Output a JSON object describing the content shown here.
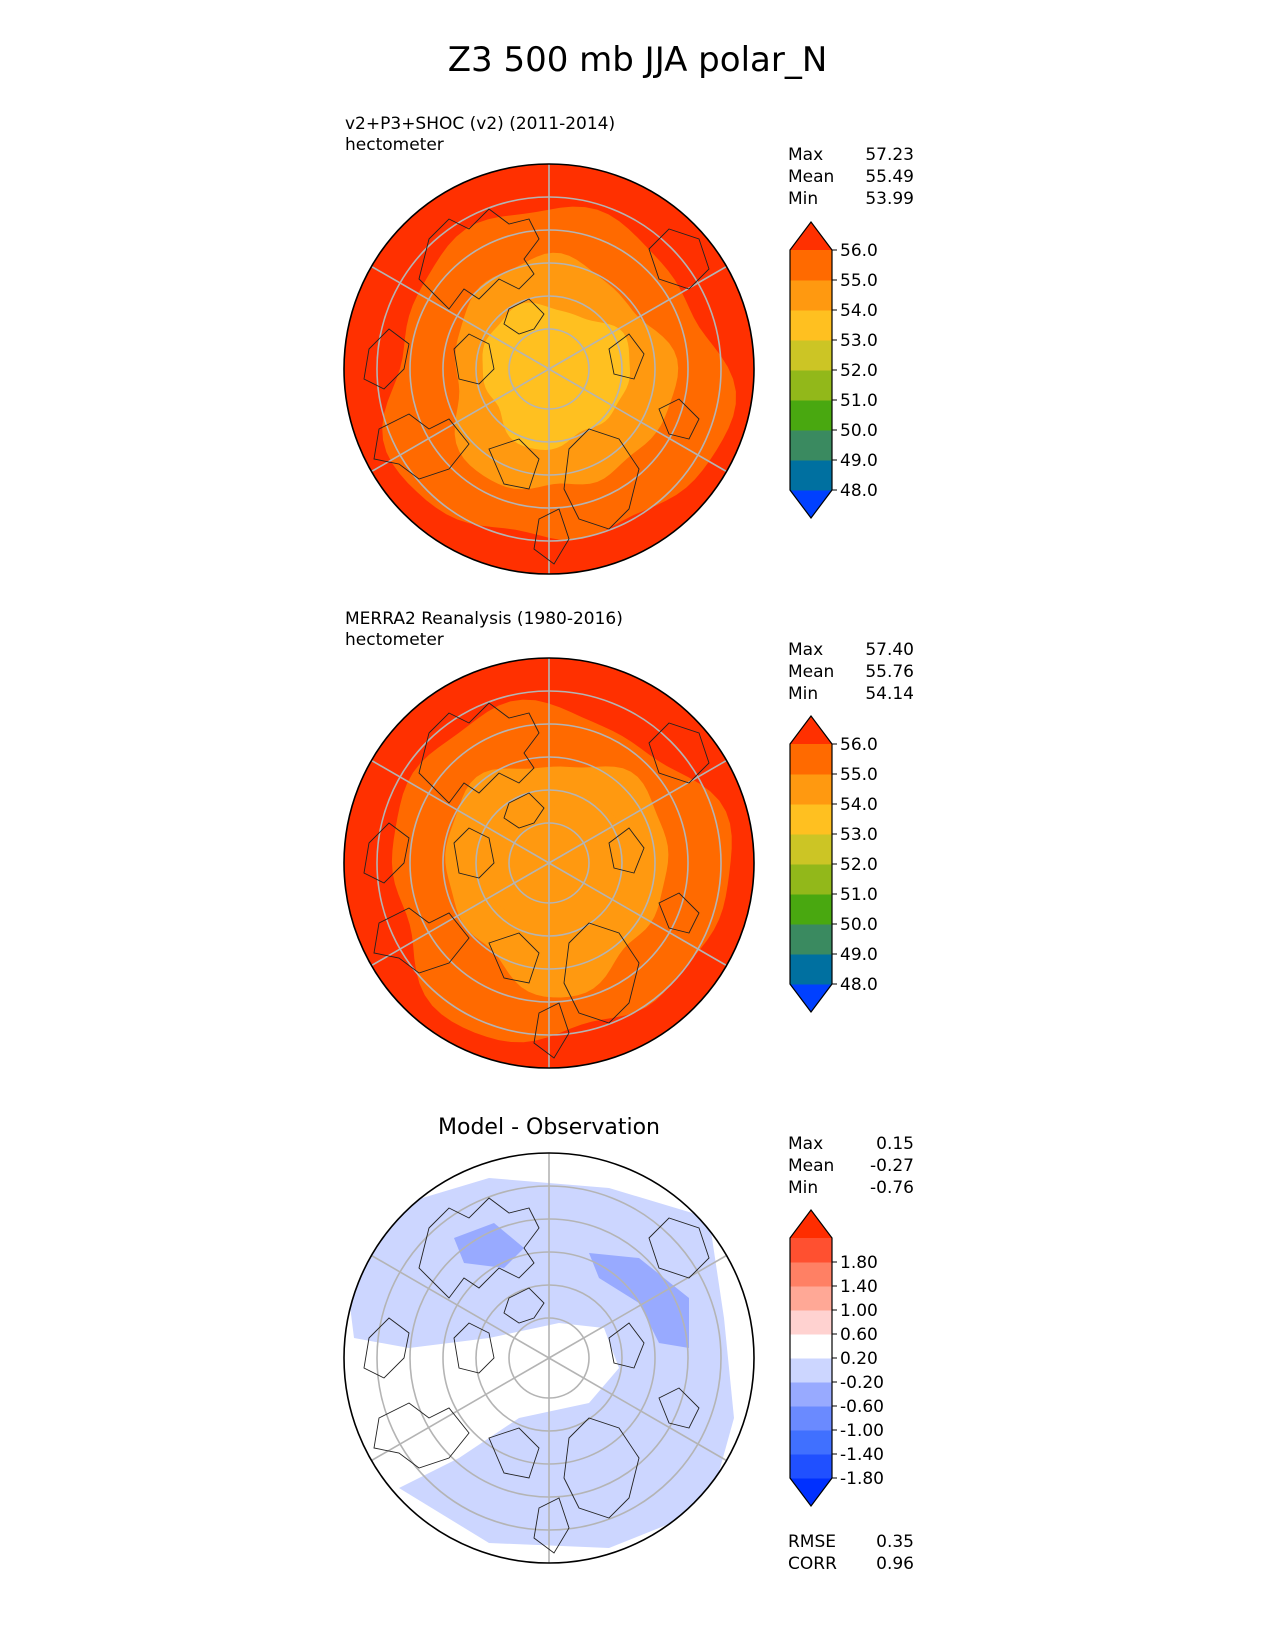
{
  "title": "Z3 500 mb JJA polar_N",
  "panels": [
    {
      "id": "test",
      "title_line1": "v2+P3+SHOC (v2) (2011-2014)",
      "title_line2": "hectometer",
      "stats": [
        {
          "label": "Max",
          "value": "57.23"
        },
        {
          "label": "Mean",
          "value": "55.49"
        },
        {
          "label": "Min",
          "value": "53.99"
        }
      ],
      "colorbar": {
        "colors": [
          "#0040ff",
          "#0070a0",
          "#3a8a60",
          "#49a810",
          "#92b81a",
          "#ccc525",
          "#ffc020",
          "#ff9910",
          "#ff6a00",
          "#ff3000"
        ],
        "ticks": [
          "48.0",
          "49.0",
          "50.0",
          "51.0",
          "52.0",
          "53.0",
          "54.0",
          "55.0",
          "56.0"
        ]
      },
      "field_colors": {
        "outer": "#ff3000",
        "ring": "#ff6a00",
        "inner": "#ff9910",
        "center": "#ffc020"
      }
    },
    {
      "id": "ref",
      "title_line1": "MERRA2 Reanalysis (1980-2016)",
      "title_line2": "hectometer",
      "stats": [
        {
          "label": "Max",
          "value": "57.40"
        },
        {
          "label": "Mean",
          "value": "55.76"
        },
        {
          "label": "Min",
          "value": "54.14"
        }
      ],
      "colorbar": {
        "colors": [
          "#0040ff",
          "#0070a0",
          "#3a8a60",
          "#49a810",
          "#92b81a",
          "#ccc525",
          "#ffc020",
          "#ff9910",
          "#ff6a00",
          "#ff3000"
        ],
        "ticks": [
          "48.0",
          "49.0",
          "50.0",
          "51.0",
          "52.0",
          "53.0",
          "54.0",
          "55.0",
          "56.0"
        ]
      },
      "field_colors": {
        "outer": "#ff3000",
        "ring": "#ff6a00",
        "inner": "#ff9910",
        "center": "#ff9910"
      }
    },
    {
      "id": "diff",
      "title_center": "Model - Observation",
      "stats": [
        {
          "label": "Max",
          "value": "0.15"
        },
        {
          "label": "Mean",
          "value": "-0.27"
        },
        {
          "label": "Min",
          "value": "-0.76"
        }
      ],
      "colorbar": {
        "colors": [
          "#0030ff",
          "#2050ff",
          "#4070ff",
          "#6a8aff",
          "#98aaff",
          "#ccd6ff",
          "#ffffff",
          "#ffd2d0",
          "#ffa896",
          "#ff8064",
          "#ff5030",
          "#ff2d00"
        ],
        "ticks": [
          "-1.80",
          "-1.40",
          "-1.00",
          "-0.60",
          "-0.20",
          "0.20",
          "0.60",
          "1.00",
          "1.40",
          "1.80"
        ]
      },
      "metrics": [
        {
          "label": "RMSE",
          "value": "0.35"
        },
        {
          "label": "CORR",
          "value": "0.96"
        }
      ]
    }
  ],
  "chart_data": {
    "type": "heatmap",
    "title": "Z3 500 mb JJA polar_N",
    "projection": "north polar stereographic",
    "units": "hectometer",
    "panels": [
      {
        "name": "v2+P3+SHOC (v2) (2011-2014)",
        "max": 57.23,
        "mean": 55.49,
        "min": 53.99,
        "levels": [
          48,
          49,
          50,
          51,
          52,
          53,
          54,
          55,
          56
        ]
      },
      {
        "name": "MERRA2 Reanalysis (1980-2016)",
        "max": 57.4,
        "mean": 55.76,
        "min": 54.14,
        "levels": [
          48,
          49,
          50,
          51,
          52,
          53,
          54,
          55,
          56
        ]
      },
      {
        "name": "Model - Observation",
        "max": 0.15,
        "mean": -0.27,
        "min": -0.76,
        "levels": [
          -1.8,
          -1.4,
          -1.0,
          -0.6,
          -0.2,
          0.2,
          0.6,
          1.0,
          1.4,
          1.8
        ],
        "rmse": 0.35,
        "corr": 0.96
      }
    ]
  }
}
